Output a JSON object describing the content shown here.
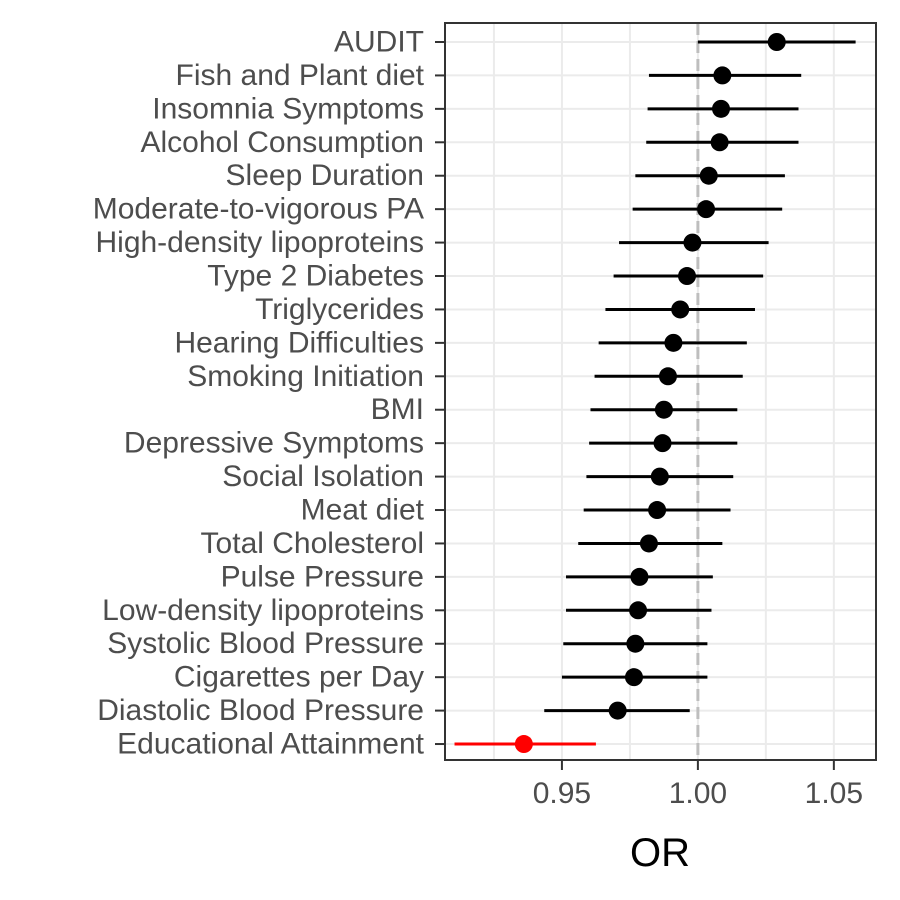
{
  "chart_data": {
    "type": "forest",
    "xlabel": "OR",
    "ylabel": "",
    "xlim": [
      0.907,
      1.0655
    ],
    "xticks": [
      0.95,
      1.0,
      1.05
    ],
    "xtick_labels": [
      "0.95",
      "1.00",
      "1.05"
    ],
    "reference_line": 1.0,
    "grid": true,
    "colors": {
      "default": "#000000",
      "highlight": "#ff0000",
      "grid_major": "#ebebeb",
      "reference": "#bebebe",
      "axis_text": "#4d4d4d",
      "panel_border": "#333333"
    },
    "rows": [
      {
        "label": "AUDIT",
        "or": 1.029,
        "lo": 1.0,
        "hi": 1.058,
        "highlight": false
      },
      {
        "label": "Fish and Plant diet",
        "or": 1.009,
        "lo": 0.982,
        "hi": 1.038,
        "highlight": false
      },
      {
        "label": "Insomnia Symptoms",
        "or": 1.0085,
        "lo": 0.9815,
        "hi": 1.037,
        "highlight": false
      },
      {
        "label": "Alcohol Consumption",
        "or": 1.008,
        "lo": 0.981,
        "hi": 1.037,
        "highlight": false
      },
      {
        "label": "Sleep Duration",
        "or": 1.004,
        "lo": 0.977,
        "hi": 1.032,
        "highlight": false
      },
      {
        "label": "Moderate-to-vigorous PA",
        "or": 1.003,
        "lo": 0.976,
        "hi": 1.031,
        "highlight": false
      },
      {
        "label": "High-density lipoproteins",
        "or": 0.998,
        "lo": 0.971,
        "hi": 1.026,
        "highlight": false
      },
      {
        "label": "Type 2 Diabetes",
        "or": 0.996,
        "lo": 0.969,
        "hi": 1.024,
        "highlight": false
      },
      {
        "label": "Triglycerides",
        "or": 0.9935,
        "lo": 0.966,
        "hi": 1.021,
        "highlight": false
      },
      {
        "label": "Hearing Difficulties",
        "or": 0.991,
        "lo": 0.9635,
        "hi": 1.018,
        "highlight": false
      },
      {
        "label": "Smoking Initiation",
        "or": 0.989,
        "lo": 0.962,
        "hi": 1.0165,
        "highlight": false
      },
      {
        "label": "BMI",
        "or": 0.9875,
        "lo": 0.9605,
        "hi": 1.0145,
        "highlight": false
      },
      {
        "label": "Depressive Symptoms",
        "or": 0.987,
        "lo": 0.96,
        "hi": 1.0145,
        "highlight": false
      },
      {
        "label": "Social Isolation",
        "or": 0.986,
        "lo": 0.959,
        "hi": 1.013,
        "highlight": false
      },
      {
        "label": "Meat diet",
        "or": 0.985,
        "lo": 0.958,
        "hi": 1.012,
        "highlight": false
      },
      {
        "label": "Total Cholesterol",
        "or": 0.982,
        "lo": 0.956,
        "hi": 1.009,
        "highlight": false
      },
      {
        "label": "Pulse Pressure",
        "or": 0.9785,
        "lo": 0.9515,
        "hi": 1.0055,
        "highlight": false
      },
      {
        "label": "Low-density lipoproteins",
        "or": 0.978,
        "lo": 0.9515,
        "hi": 1.005,
        "highlight": false
      },
      {
        "label": "Systolic Blood Pressure",
        "or": 0.977,
        "lo": 0.9505,
        "hi": 1.0035,
        "highlight": false
      },
      {
        "label": "Cigarettes per Day",
        "or": 0.9765,
        "lo": 0.95,
        "hi": 1.0035,
        "highlight": false
      },
      {
        "label": "Diastolic Blood Pressure",
        "or": 0.9705,
        "lo": 0.9435,
        "hi": 0.997,
        "highlight": false
      },
      {
        "label": "Educational Attainment",
        "or": 0.936,
        "lo": 0.9105,
        "hi": 0.9625,
        "highlight": true
      }
    ]
  }
}
